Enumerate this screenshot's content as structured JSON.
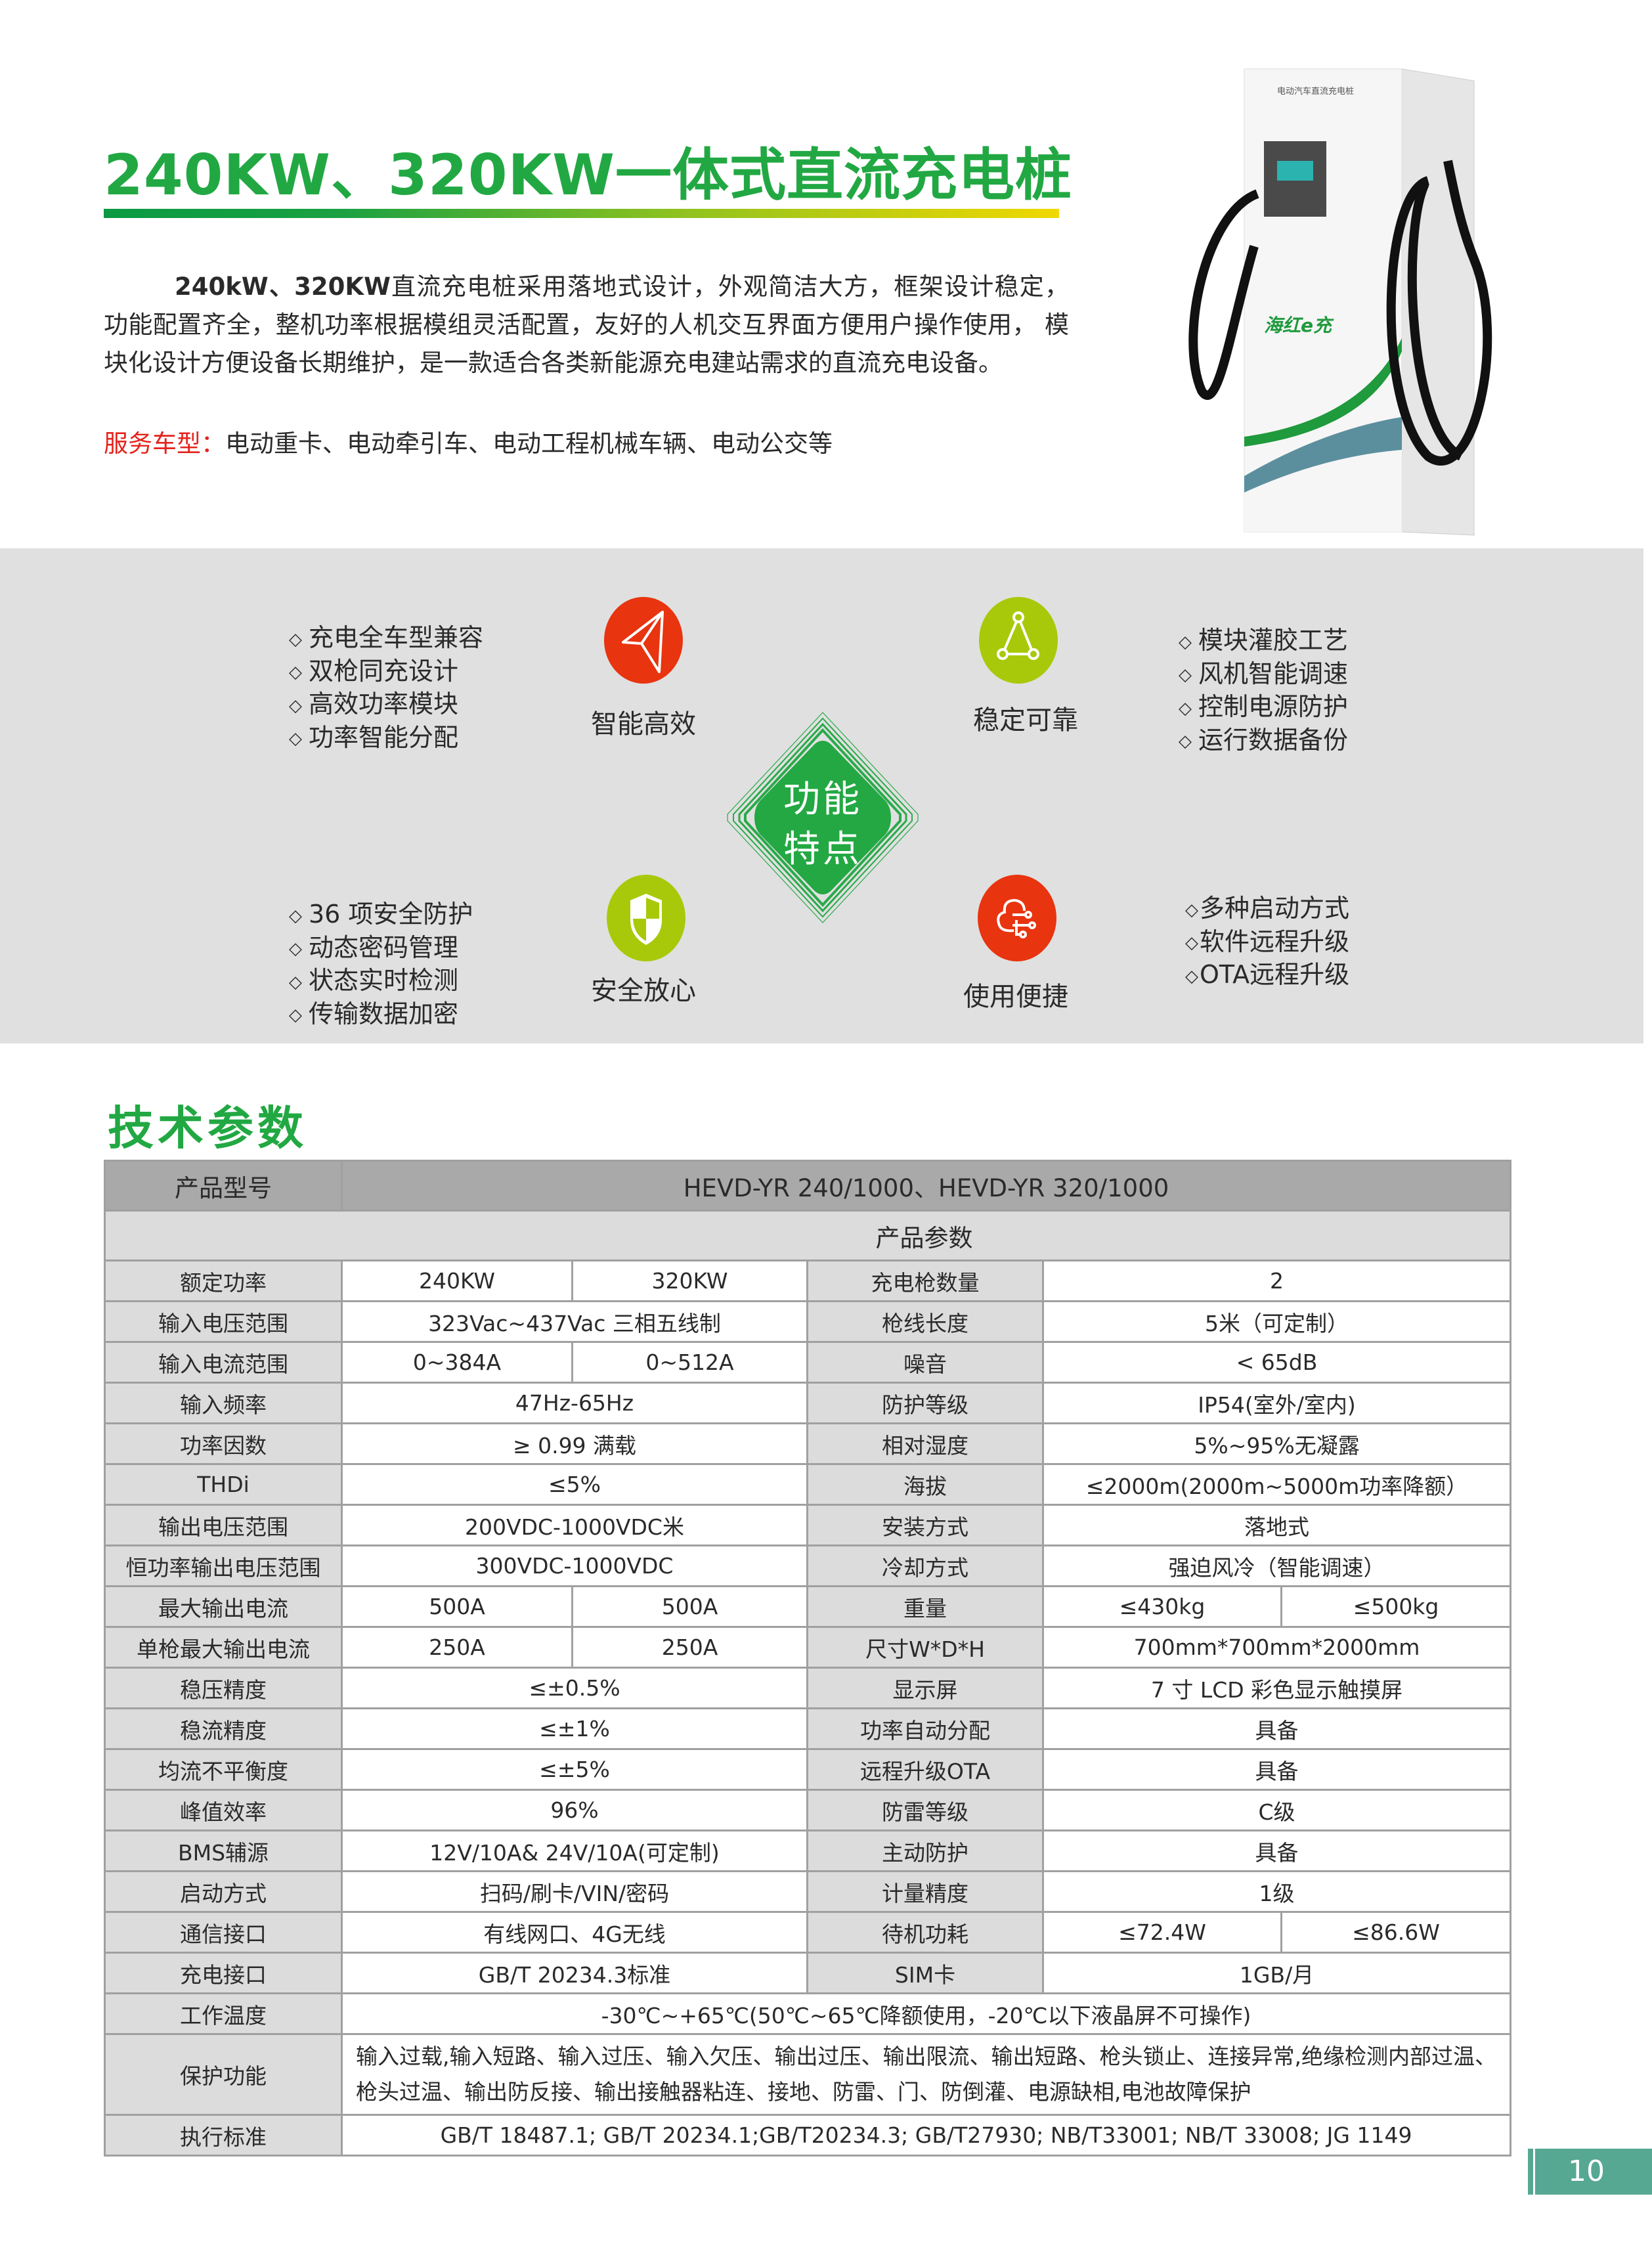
{
  "header": {
    "title": "240KW、320KW一体式直流充电桩",
    "intro_bold": "240kW、320KW",
    "intro": "直流充电桩采用落地式设计，外观简洁大方，框架设计稳定，功能配置齐全，整机功率根据模组灵活配置，友好的人机交互界面方便用户操作使用， 模块化设计方便设备长期维护，是一款适合各类新能源充电建站需求的直流充电设备。",
    "service_label": "服务车型：",
    "service_value": "电动重卡、电动牵引车、电动工程机械车辆、电动公交等"
  },
  "product_image": {
    "panel_text": "电动汽车直流充电桩",
    "brand": "海红e充"
  },
  "features": {
    "center": [
      "功能",
      "特点"
    ],
    "groups": [
      {
        "title": "智能高效",
        "icon": "paper-plane-icon",
        "color": "#e8340f",
        "items": [
          "充电全车型兼容",
          "双枪同充设计",
          "高效功率模块",
          "功率智能分配"
        ]
      },
      {
        "title": "稳定可靠",
        "icon": "network-triangle-icon",
        "color": "#a8c90a",
        "items": [
          "模块灌胶工艺",
          "风机智能调速",
          "控制电源防护",
          "运行数据备份"
        ]
      },
      {
        "title": "安全放心",
        "icon": "shield-icon",
        "color": "#a8c90a",
        "items": [
          "36 项安全防护",
          "动态密码管理",
          "状态实时检测",
          "传输数据加密"
        ]
      },
      {
        "title": "使用便捷",
        "icon": "cloud-network-icon",
        "color": "#e8340f",
        "items": [
          "多种启动方式",
          "软件远程升级",
          "OTA远程升级"
        ]
      }
    ],
    "bullet": "◇"
  },
  "specs": {
    "title": "技术参数",
    "model_label": "产品型号",
    "model_value": "HEVD-YR 240/1000、HEVD-YR 320/1000",
    "group_label": "产品参数",
    "rows": [
      {
        "l": "额定功率",
        "lv": [
          "240KW",
          "320KW"
        ],
        "r": "充电枪数量",
        "rv": [
          "2"
        ]
      },
      {
        "l": "输入电压范围",
        "lv": [
          "323Vac~437Vac 三相五线制"
        ],
        "r": "枪线长度",
        "rv": [
          "5米（可定制）"
        ]
      },
      {
        "l": "输入电流范围",
        "lv": [
          "0~384A",
          "0~512A"
        ],
        "r": "噪音",
        "rv": [
          "< 65dB"
        ]
      },
      {
        "l": "输入频率",
        "lv": [
          "47Hz-65Hz"
        ],
        "r": "防护等级",
        "rv": [
          "IP54(室外/室内)"
        ]
      },
      {
        "l": "功率因数",
        "lv": [
          "≥ 0.99 满载"
        ],
        "r": "相对湿度",
        "rv": [
          "5%~95%无凝露"
        ]
      },
      {
        "l": "THDi",
        "lv": [
          "≤5%"
        ],
        "r": "海拔",
        "rv": [
          "≤2000m(2000m~5000m功率降额）"
        ]
      },
      {
        "l": "输出电压范围",
        "lv": [
          "200VDC-1000VDC米"
        ],
        "r": "安装方式",
        "rv": [
          "落地式"
        ]
      },
      {
        "l": "恒功率输出电压范围",
        "lv": [
          "300VDC-1000VDC"
        ],
        "r": "冷却方式",
        "rv": [
          "强迫风冷（智能调速）"
        ]
      },
      {
        "l": "最大输出电流",
        "lv": [
          "500A",
          "500A"
        ],
        "r": "重量",
        "rv": [
          "≤430kg",
          "≤500kg"
        ]
      },
      {
        "l": "单枪最大输出电流",
        "lv": [
          "250A",
          "250A"
        ],
        "r": "尺寸W*D*H",
        "rv": [
          "700mm*700mm*2000mm"
        ]
      },
      {
        "l": "稳压精度",
        "lv": [
          "≤±0.5%"
        ],
        "r": "显示屏",
        "rv": [
          "7 寸 LCD 彩色显示触摸屏"
        ]
      },
      {
        "l": "稳流精度",
        "lv": [
          "≤±1%"
        ],
        "r": "功率自动分配",
        "rv": [
          "具备"
        ]
      },
      {
        "l": "均流不平衡度",
        "lv": [
          "≤±5%"
        ],
        "r": "远程升级OTA",
        "rv": [
          "具备"
        ]
      },
      {
        "l": "峰值效率",
        "lv": [
          "96%"
        ],
        "r": "防雷等级",
        "rv": [
          "C级"
        ]
      },
      {
        "l": "BMS辅源",
        "lv": [
          "12V/10A& 24V/10A(可定制)"
        ],
        "r": "主动防护",
        "rv": [
          "具备"
        ]
      },
      {
        "l": "启动方式",
        "lv": [
          "扫码/刷卡/VIN/密码"
        ],
        "r": "计量精度",
        "rv": [
          "1级"
        ]
      },
      {
        "l": "通信接口",
        "lv": [
          "有线网口、4G无线"
        ],
        "r": "待机功耗",
        "rv": [
          "≤72.4W",
          "≤86.6W"
        ]
      },
      {
        "l": "充电接口",
        "lv": [
          "GB/T 20234.3标准"
        ],
        "r": "SIM卡",
        "rv": [
          "1GB/月"
        ]
      },
      {
        "l": "工作温度",
        "full": "-30℃~+65℃(50℃~65℃降额使用，-20℃以下液晶屏不可操作)"
      },
      {
        "l": "保护功能",
        "full": "输入过载,输入短路、输入过压、输入欠压、输出过压、输出限流、输出短路、枪头锁止、连接异常,绝缘检测内部过温、枪头过温、输出防反接、输出接触器粘连、接地、防雷、门、防倒灌、电源缺相,电池故障保护",
        "multi": true
      },
      {
        "l": "执行标准",
        "full": "GB/T 18487.1; GB/T 20234.1;GB/T20234.3; GB/T27930; NB/T33001; NB/T 33008; JG 1149"
      }
    ]
  },
  "footer": {
    "page_number": "10",
    "tab_color": "#56a893"
  },
  "colors": {
    "title_green": "#22a843",
    "service_red": "#e4231c",
    "band_gray": "#e0e0e0"
  }
}
